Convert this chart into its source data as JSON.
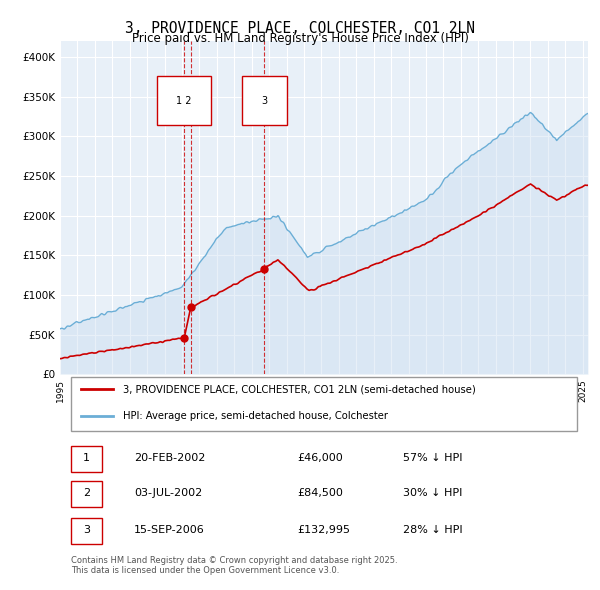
{
  "title": "3, PROVIDENCE PLACE, COLCHESTER, CO1 2LN",
  "subtitle": "Price paid vs. HM Land Registry's House Price Index (HPI)",
  "title_fontsize": 11,
  "subtitle_fontsize": 9,
  "background_color": "#ffffff",
  "plot_bg_color": "#e8f0f8",
  "grid_color": "#ffffff",
  "ylim": [
    0,
    420000
  ],
  "ytick_values": [
    0,
    50000,
    100000,
    150000,
    200000,
    250000,
    300000,
    350000,
    400000
  ],
  "ytick_labels": [
    "£0",
    "£50K",
    "£100K",
    "£150K",
    "£200K",
    "£250K",
    "£300K",
    "£350K",
    "£400K"
  ],
  "hpi_color": "#6baed6",
  "hpi_fill_color": "#c6dbef",
  "price_color": "#cc0000",
  "vline_color": "#cc0000",
  "sale_marker_color": "#cc0000",
  "sale_points": [
    {
      "date_num": 2002.13,
      "price": 46000,
      "label": "1"
    },
    {
      "date_num": 2002.5,
      "price": 84500,
      "label": "2"
    },
    {
      "date_num": 2006.71,
      "price": 132995,
      "label": "3"
    }
  ],
  "annotation_box_color": "#cc0000",
  "legend_entries": [
    "3, PROVIDENCE PLACE, COLCHESTER, CO1 2LN (semi-detached house)",
    "HPI: Average price, semi-detached house, Colchester"
  ],
  "table_rows": [
    {
      "num": "1",
      "date": "20-FEB-2002",
      "price": "£46,000",
      "hpi": "57% ↓ HPI"
    },
    {
      "num": "2",
      "date": "03-JUL-2002",
      "price": "£84,500",
      "hpi": "30% ↓ HPI"
    },
    {
      "num": "3",
      "date": "15-SEP-2006",
      "price": "£132,995",
      "hpi": "28% ↓ HPI"
    }
  ],
  "footer_text": "Contains HM Land Registry data © Crown copyright and database right 2025.\nThis data is licensed under the Open Government Licence v3.0."
}
